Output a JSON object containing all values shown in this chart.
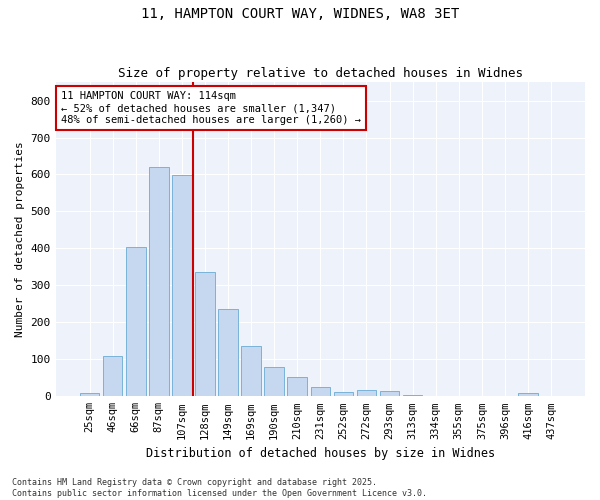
{
  "title_line1": "11, HAMPTON COURT WAY, WIDNES, WA8 3ET",
  "title_line2": "Size of property relative to detached houses in Widnes",
  "xlabel": "Distribution of detached houses by size in Widnes",
  "ylabel": "Number of detached properties",
  "bar_labels": [
    "25sqm",
    "46sqm",
    "66sqm",
    "87sqm",
    "107sqm",
    "128sqm",
    "149sqm",
    "169sqm",
    "190sqm",
    "210sqm",
    "231sqm",
    "252sqm",
    "272sqm",
    "293sqm",
    "313sqm",
    "334sqm",
    "355sqm",
    "375sqm",
    "396sqm",
    "416sqm",
    "437sqm"
  ],
  "bar_values": [
    8,
    108,
    405,
    620,
    598,
    336,
    236,
    135,
    79,
    52,
    25,
    12,
    16,
    15,
    4,
    1,
    0,
    0,
    0,
    9,
    0
  ],
  "bar_color": "#c5d8f0",
  "bar_edge_color": "#6aaad4",
  "vline_color": "#cc0000",
  "annotation_box_color": "#cc0000",
  "background_color": "#ffffff",
  "plot_bg_color": "#eef2fa",
  "grid_color": "#ffffff",
  "ylim": [
    0,
    850
  ],
  "yticks": [
    0,
    100,
    200,
    300,
    400,
    500,
    600,
    700,
    800
  ],
  "footer_line1": "Contains HM Land Registry data © Crown copyright and database right 2025.",
  "footer_line2": "Contains public sector information licensed under the Open Government Licence v3.0.",
  "annotation_text": "11 HAMPTON COURT WAY: 114sqm\n← 52% of detached houses are smaller (1,347)\n48% of semi-detached houses are larger (1,260) →"
}
